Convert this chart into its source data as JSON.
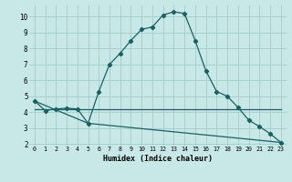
{
  "xlabel": "Humidex (Indice chaleur)",
  "bg_color": "#c8e8e8",
  "grid_color": "#a8d0d0",
  "line_color": "#1a6060",
  "xlim": [
    -0.5,
    23.5
  ],
  "ylim": [
    1.9,
    10.7
  ],
  "xtick_vals": [
    0,
    1,
    2,
    3,
    4,
    5,
    6,
    7,
    8,
    9,
    10,
    11,
    12,
    13,
    14,
    15,
    16,
    17,
    18,
    19,
    20,
    21,
    22,
    23
  ],
  "ytick_vals": [
    2,
    3,
    4,
    5,
    6,
    7,
    8,
    9,
    10
  ],
  "line1_x": [
    0,
    1,
    2,
    3,
    4,
    5,
    6,
    7,
    8,
    9,
    10,
    11,
    12,
    13,
    14,
    15,
    16,
    17,
    18,
    19,
    20,
    21,
    22,
    23
  ],
  "line1_y": [
    4.7,
    4.1,
    4.2,
    4.25,
    4.2,
    3.3,
    5.3,
    7.0,
    7.7,
    8.5,
    9.2,
    9.35,
    10.1,
    10.3,
    10.2,
    8.5,
    6.6,
    5.3,
    5.0,
    4.3,
    3.5,
    3.1,
    2.65,
    2.1
  ],
  "line2_x": [
    0,
    5,
    23
  ],
  "line2_y": [
    4.2,
    4.2,
    4.2
  ],
  "line3_x": [
    0,
    5,
    23
  ],
  "line3_y": [
    4.7,
    3.3,
    2.1
  ]
}
